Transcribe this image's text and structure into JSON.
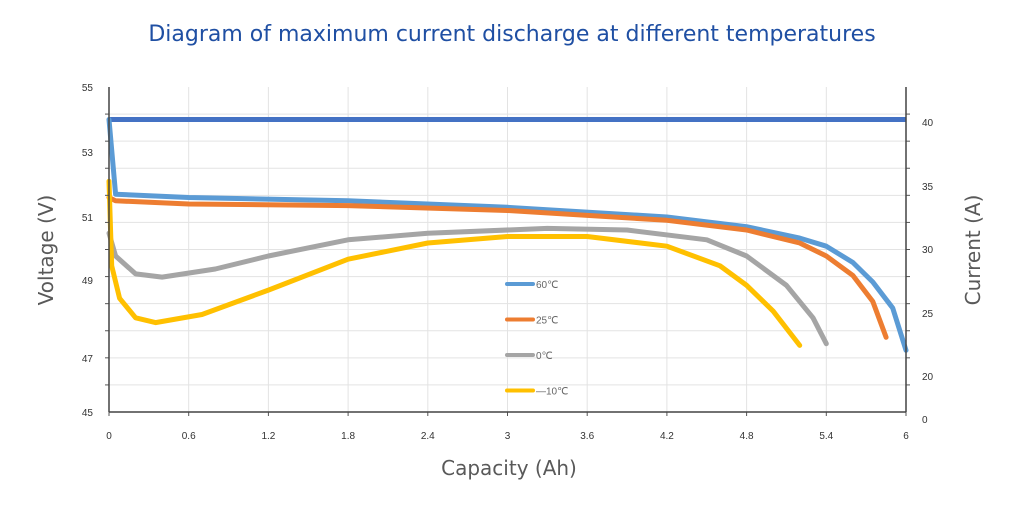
{
  "chart_data": {
    "type": "line",
    "title": "Diagram of maximum current discharge at different temperatures",
    "xlabel": "Capacity (Ah)",
    "ylabel": "Voltage (V)",
    "y2label": "Current (A)",
    "xlim": [
      0,
      6
    ],
    "ylim": [
      45,
      55
    ],
    "xticks": [
      "0",
      "0.6",
      "1.2",
      "1.8",
      "2.4",
      "3",
      "3.6",
      "4.2",
      "4.8",
      "5.4",
      "6"
    ],
    "yticks": [
      "55",
      "53",
      "51",
      "49",
      "47",
      "45"
    ],
    "y2ticks": [
      "40",
      "35",
      "30",
      "25",
      "20",
      "0"
    ],
    "grid": true,
    "legend_position": "center",
    "current_line": {
      "value_v": 54,
      "current_a": 40,
      "color": "#4472c4"
    },
    "series": [
      {
        "name": "60℃",
        "color": "#5b9bd5",
        "x": [
          0,
          0.05,
          0.6,
          1.8,
          3,
          4.2,
          4.8,
          5.2,
          5.4,
          5.6,
          5.75,
          5.9,
          6.0
        ],
        "y": [
          54,
          51.7,
          51.6,
          51.5,
          51.3,
          51.0,
          50.7,
          50.35,
          50.1,
          49.6,
          49.0,
          48.2,
          46.9
        ]
      },
      {
        "name": "25℃",
        "color": "#ed7d31",
        "x": [
          0,
          0.05,
          0.6,
          1.8,
          3,
          4.2,
          4.8,
          5.2,
          5.4,
          5.6,
          5.75,
          5.85
        ],
        "y": [
          51.6,
          51.5,
          51.4,
          51.35,
          51.2,
          50.9,
          50.6,
          50.2,
          49.8,
          49.2,
          48.4,
          47.3
        ]
      },
      {
        "name": "0℃",
        "color": "#a5a5a5",
        "x": [
          0,
          0.05,
          0.2,
          0.4,
          0.8,
          1.2,
          1.8,
          2.4,
          3.3,
          3.9,
          4.5,
          4.8,
          5.1,
          5.3,
          5.4
        ],
        "y": [
          50.5,
          49.8,
          49.25,
          49.15,
          49.4,
          49.8,
          50.3,
          50.5,
          50.65,
          50.6,
          50.3,
          49.8,
          48.9,
          47.9,
          47.1
        ]
      },
      {
        "name": "—10℃",
        "color": "#ffc000",
        "x": [
          0,
          0.02,
          0.08,
          0.2,
          0.35,
          0.7,
          1.2,
          1.8,
          2.4,
          3,
          3.6,
          4.2,
          4.6,
          4.8,
          5.0,
          5.2
        ],
        "y": [
          52.1,
          49.5,
          48.5,
          47.9,
          47.75,
          48.0,
          48.75,
          49.7,
          50.2,
          50.4,
          50.4,
          50.1,
          49.5,
          48.9,
          48.1,
          47.05
        ]
      }
    ]
  }
}
